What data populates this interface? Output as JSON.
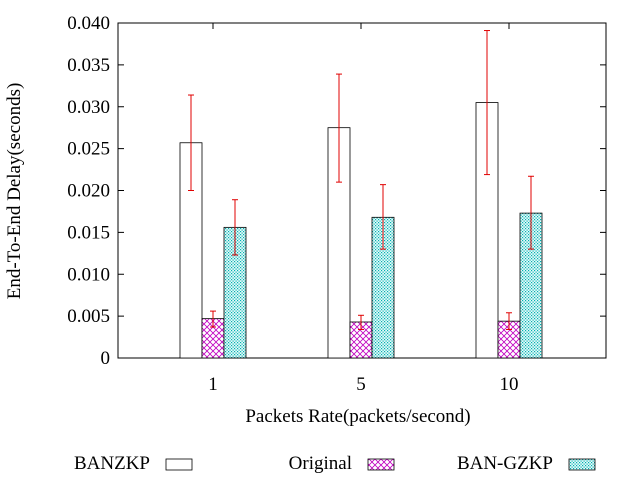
{
  "chart_data": {
    "type": "bar",
    "title": "",
    "xlabel": "Packets Rate(packets/second)",
    "ylabel": "End-To-End Delay(seconds)",
    "categories": [
      "1",
      "5",
      "10"
    ],
    "ylim": [
      0,
      0.04
    ],
    "yticks": [
      {
        "value": 0,
        "label": "0"
      },
      {
        "value": 0.005,
        "label": "0.005"
      },
      {
        "value": 0.01,
        "label": "0.010"
      },
      {
        "value": 0.015,
        "label": "0.015"
      },
      {
        "value": 0.02,
        "label": "0.020"
      },
      {
        "value": 0.025,
        "label": "0.025"
      },
      {
        "value": 0.03,
        "label": "0.030"
      },
      {
        "value": 0.035,
        "label": "0.035"
      },
      {
        "value": 0.04,
        "label": "0.040"
      }
    ],
    "grid": false,
    "legend_position": "bottom",
    "error_bars": true,
    "series": [
      {
        "name": "BANZKP",
        "pattern": "empty",
        "color": "#000000",
        "values": [
          0.0257,
          0.0275,
          0.0305
        ],
        "err_low": [
          0.02,
          0.021,
          0.0219
        ],
        "err_high": [
          0.0314,
          0.0339,
          0.0391
        ]
      },
      {
        "name": "Original",
        "pattern": "crosshatch",
        "color": "#c000c0",
        "values": [
          0.0047,
          0.0043,
          0.0044
        ],
        "err_low": [
          0.0037,
          0.0034,
          0.0034
        ],
        "err_high": [
          0.0056,
          0.0051,
          0.0054
        ]
      },
      {
        "name": "BAN-GZKP",
        "pattern": "dots",
        "color": "#00c0c0",
        "values": [
          0.0156,
          0.0168,
          0.0173
        ],
        "err_low": [
          0.0123,
          0.013,
          0.013
        ],
        "err_high": [
          0.0189,
          0.0207,
          0.0217
        ]
      }
    ],
    "colors": {
      "error_bar": "#e00000",
      "axis": "#000000"
    }
  }
}
